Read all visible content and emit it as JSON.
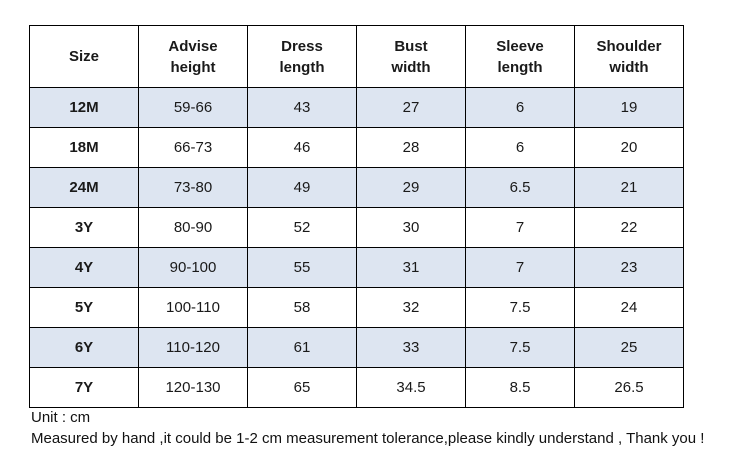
{
  "table": {
    "headers": [
      [
        "Size"
      ],
      [
        "Advise",
        "height"
      ],
      [
        "Dress",
        "length"
      ],
      [
        "Bust",
        "width"
      ],
      [
        "Sleeve",
        "length"
      ],
      [
        "Shoulder",
        "width"
      ]
    ],
    "rows": [
      [
        "12M",
        "59-66",
        "43",
        "27",
        "6",
        "19"
      ],
      [
        "18M",
        "66-73",
        "46",
        "28",
        "6",
        "20"
      ],
      [
        "24M",
        "73-80",
        "49",
        "29",
        "6.5",
        "21"
      ],
      [
        "3Y",
        "80-90",
        "52",
        "30",
        "7",
        "22"
      ],
      [
        "4Y",
        "90-100",
        "55",
        "31",
        "7",
        "23"
      ],
      [
        "5Y",
        "100-110",
        "58",
        "32",
        "7.5",
        "24"
      ],
      [
        "6Y",
        "110-120",
        "61",
        "33",
        "7.5",
        "25"
      ],
      [
        "7Y",
        "120-130",
        "65",
        "34.5",
        "8.5",
        "26.5"
      ]
    ],
    "shaded_row_color": "#dde5f1",
    "border_color": "#000000"
  },
  "footer": {
    "unit": "Unit : cm",
    "note": "Measured by hand ,it could be 1-2 cm measurement tolerance,please kindly understand , Thank you !"
  }
}
